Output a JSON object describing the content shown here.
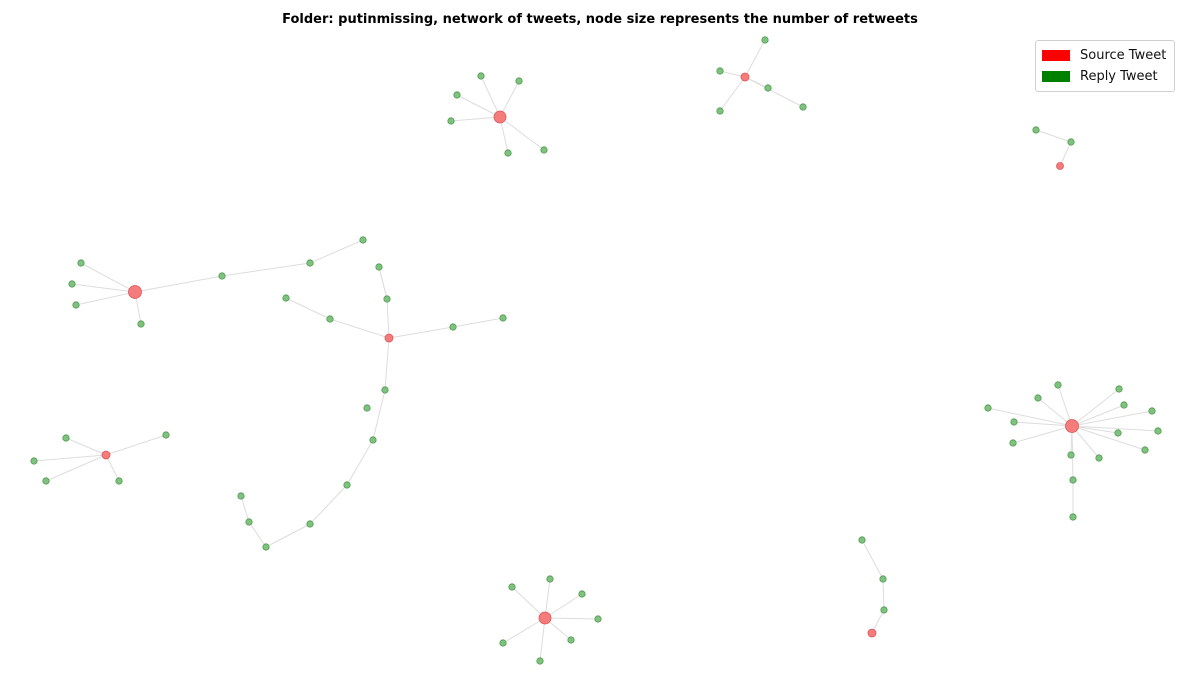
{
  "title": "Folder: putinmissing, network of tweets, node size represents the number of retweets",
  "legend": [
    {
      "label": "Source Tweet",
      "color": "#ff0000"
    },
    {
      "label": "Reply Tweet",
      "color": "#008000"
    }
  ],
  "colors": {
    "source_node": "#f47c7c",
    "source_stroke": "#e05555",
    "reply_node": "#7fc17f",
    "reply_stroke": "#4f9a4f",
    "edge": "#dddddd"
  }
}
